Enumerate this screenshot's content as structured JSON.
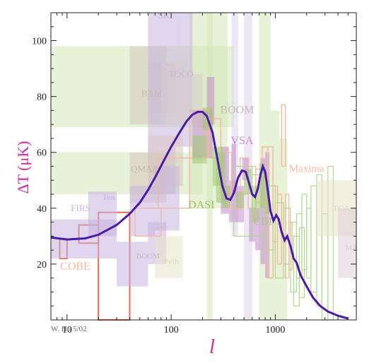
{
  "chart_data": {
    "type": "scatter",
    "title": "",
    "xlabel": "l",
    "ylabel": "ΔT (μK)",
    "x_scale": "log",
    "xlim": [
      7,
      6000
    ],
    "ylim": [
      0,
      110
    ],
    "x_ticks": [
      {
        "value": 10,
        "label": "10"
      },
      {
        "value": 100,
        "label": "100"
      },
      {
        "value": 1000,
        "label": "1000"
      }
    ],
    "y_ticks": [
      {
        "value": 20,
        "label": "20"
      },
      {
        "value": 40,
        "label": "40"
      },
      {
        "value": 60,
        "label": "60"
      },
      {
        "value": 80,
        "label": "80"
      },
      {
        "value": 100,
        "label": "100"
      }
    ],
    "grid": false,
    "credit": "W. Hu 5/02",
    "theory_curve": {
      "color": "#4a1aa8",
      "points": [
        [
          7,
          29.5
        ],
        [
          10,
          28.8
        ],
        [
          15,
          29.2
        ],
        [
          20,
          30.5
        ],
        [
          30,
          34
        ],
        [
          40,
          38
        ],
        [
          50,
          42
        ],
        [
          60,
          46.5
        ],
        [
          70,
          51
        ],
        [
          85,
          57
        ],
        [
          100,
          62
        ],
        [
          120,
          67
        ],
        [
          140,
          71
        ],
        [
          160,
          73.5
        ],
        [
          180,
          74.5
        ],
        [
          200,
          74.5
        ],
        [
          220,
          73
        ],
        [
          250,
          67
        ],
        [
          280,
          57
        ],
        [
          310,
          48
        ],
        [
          340,
          43.5
        ],
        [
          370,
          43
        ],
        [
          400,
          45.5
        ],
        [
          440,
          51
        ],
        [
          480,
          53.5
        ],
        [
          520,
          53
        ],
        [
          560,
          49
        ],
        [
          600,
          45
        ],
        [
          640,
          44
        ],
        [
          680,
          47
        ],
        [
          720,
          52
        ],
        [
          760,
          55
        ],
        [
          800,
          53
        ],
        [
          850,
          46
        ],
        [
          900,
          39
        ],
        [
          960,
          35.5
        ],
        [
          1020,
          37.5
        ],
        [
          1080,
          36
        ],
        [
          1150,
          31.5
        ],
        [
          1230,
          28.5
        ],
        [
          1300,
          30
        ],
        [
          1400,
          26.5
        ],
        [
          1500,
          22
        ],
        [
          1600,
          20.5
        ],
        [
          1750,
          16
        ],
        [
          2000,
          12
        ],
        [
          2300,
          8
        ],
        [
          2700,
          5
        ],
        [
          3200,
          3
        ],
        [
          4000,
          1.5
        ],
        [
          5000,
          0.5
        ]
      ]
    },
    "experiments": [
      {
        "name": "COBE",
        "color": "#ee6a50",
        "label_color": "#f5b8a4",
        "label_pos": [
          12,
          18
        ],
        "label_size": 16,
        "fill": false,
        "stroke_width": 2,
        "boxes": [
          [
            3.6,
            5.5,
            24,
            33
          ],
          [
            8.5,
            10,
            22,
            29
          ],
          [
            13,
            20,
            27.5,
            34
          ],
          [
            20,
            40,
            0,
            38.5
          ]
        ]
      },
      {
        "name": "FIRS",
        "color": "#c7b5e0",
        "label_color": "#c7b5e0",
        "label_pos": [
          13.5,
          39
        ],
        "label_size": 13,
        "fill": true,
        "stroke_width": 0,
        "boxes": [
          [
            3.2,
            30,
            22,
            36
          ]
        ]
      },
      {
        "name": "Ten",
        "color": "#c7b5e0",
        "label_color": "#c7b5e0",
        "label_pos": [
          25,
          43
        ],
        "label_size": 12,
        "fill": true,
        "stroke_width": 0,
        "boxes": [
          [
            16,
            30,
            30,
            46
          ]
        ]
      },
      {
        "name": "BAM",
        "color": "#d4c8c0",
        "label_color": "#c8b8b8",
        "label_pos": [
          65,
          80
        ],
        "label_size": 13,
        "fill": true,
        "stroke_width": 0,
        "boxes": [
          [
            40,
            90,
            70,
            98
          ],
          [
            60,
            110,
            74,
            92
          ]
        ]
      },
      {
        "name": "SK",
        "color": "#c7b5e0",
        "label_color": "#c7b5e0",
        "label_pos": [
          85,
          108
        ],
        "label_size": 13,
        "fill": true,
        "stroke_width": 0,
        "boxes": [
          [
            60,
            110,
            45,
            110
          ],
          [
            110,
            160,
            62,
            110
          ]
        ]
      },
      {
        "name": "TOCO",
        "color": "#d8ccd0",
        "label_color": "#c8b8c8",
        "label_pos": [
          125,
          87
        ],
        "label_size": 13,
        "fill": true,
        "stroke_width": 0,
        "boxes": [
          [
            80,
            140,
            70,
            92
          ],
          [
            120,
            200,
            75,
            88
          ]
        ]
      },
      {
        "name": "QMAP",
        "color": "#d8c8c0",
        "label_color": "#c8b8b0",
        "label_pos": [
          55,
          53
        ],
        "label_size": 13,
        "fill": true,
        "stroke_width": 0,
        "boxes": [
          [
            40,
            90,
            42,
            60
          ],
          [
            60,
            130,
            48,
            66
          ]
        ]
      },
      {
        "name": "BOOM",
        "color": "#c7b5e0",
        "label_color": "#c8b8b8",
        "label_pos": [
          430,
          74
        ],
        "label_size": 16,
        "fill": true,
        "stroke_width": 0,
        "boxes": [
          [
            40,
            70,
            30,
            48
          ],
          [
            70,
            120,
            32,
            55
          ],
          [
            60,
            90,
            20,
            35
          ]
        ]
      },
      {
        "name": "BOOM",
        "color": "#c7b5e0",
        "label_color": "#c8b8c8",
        "label_pos": [
          60,
          22
        ],
        "label_size": 11,
        "fill": true,
        "stroke_width": 0,
        "boxes": [
          [
            30,
            60,
            12,
            28
          ]
        ]
      },
      {
        "name": "Pyth",
        "color": "#e8e4c8",
        "label_color": "#e0d8c0",
        "label_pos": [
          100,
          20
        ],
        "label_size": 12,
        "fill": true,
        "stroke_width": 0,
        "boxes": [
          [
            70,
            130,
            15,
            30
          ]
        ]
      },
      {
        "name": "VSA",
        "color": "#c68ad0",
        "label_color": "#c68ad0",
        "label_pos": [
          480,
          63
        ],
        "label_size": 16,
        "fill": true,
        "stroke_width": 0,
        "boxes": [
          [
            160,
            250,
            58,
            75
          ],
          [
            220,
            260,
            70,
            87
          ],
          [
            300,
            360,
            38,
            62
          ],
          [
            360,
            420,
            35,
            50
          ],
          [
            420,
            500,
            35,
            48
          ],
          [
            560,
            640,
            28,
            40
          ],
          [
            640,
            720,
            25,
            40
          ],
          [
            720,
            800,
            20,
            58
          ],
          [
            800,
            880,
            15,
            60
          ],
          [
            380,
            420,
            45,
            63
          ],
          [
            480,
            560,
            50,
            58
          ]
        ]
      },
      {
        "name": "Maxima",
        "color": "#f7b8a0",
        "label_color": "#f5b8a4",
        "label_pos": [
          2000,
          53
        ],
        "label_size": 15,
        "fill": false,
        "stroke_width": 1.4,
        "boxes": [
          [
            45,
            80,
            30,
            40
          ],
          [
            75,
            150,
            40,
            58
          ],
          [
            150,
            230,
            58,
            75
          ],
          [
            220,
            300,
            58,
            72
          ],
          [
            300,
            380,
            45,
            60
          ],
          [
            380,
            460,
            40,
            55
          ],
          [
            460,
            550,
            45,
            58
          ],
          [
            550,
            650,
            40,
            55
          ],
          [
            650,
            750,
            42,
            54
          ],
          [
            750,
            850,
            42,
            62
          ],
          [
            850,
            950,
            15,
            62
          ],
          [
            950,
            1050,
            28,
            48
          ],
          [
            1050,
            1150,
            20,
            45
          ],
          [
            1150,
            1250,
            55,
            77
          ],
          [
            1250,
            1350,
            15,
            45
          ],
          [
            1350,
            1450,
            18,
            35
          ]
        ]
      },
      {
        "name": "DASI",
        "color": "#a0c870",
        "label_color": "#9cc05c",
        "label_pos": [
          195,
          40
        ],
        "label_size": 16,
        "fill": true,
        "stroke_width": 0,
        "boxes": [
          [
            200,
            250,
            68,
            76
          ],
          [
            250,
            310,
            48,
            62
          ],
          [
            310,
            370,
            40,
            48
          ],
          [
            420,
            500,
            40,
            46
          ],
          [
            500,
            590,
            45,
            54
          ],
          [
            590,
            700,
            35,
            48
          ],
          [
            700,
            790,
            40,
            56
          ],
          [
            790,
            880,
            38,
            50
          ],
          [
            160,
            220,
            56,
            66
          ],
          [
            270,
            330,
            42,
            60
          ]
        ]
      },
      {
        "name": "CBI",
        "color": "#b0d890",
        "label_color": "#b8b8a8",
        "label_pos": [
          760,
          34
        ],
        "label_size": 16,
        "fill": false,
        "stroke_width": 1.2,
        "boxes": [
          [
            400,
            600,
            30,
            55
          ],
          [
            600,
            800,
            30,
            52
          ],
          [
            800,
            1000,
            25,
            48
          ],
          [
            1000,
            1200,
            15,
            42
          ],
          [
            1200,
            1400,
            20,
            40
          ],
          [
            1400,
            1600,
            10,
            35
          ],
          [
            1600,
            1800,
            15,
            38
          ],
          [
            1800,
            2000,
            18,
            45
          ],
          [
            2000,
            2200,
            15,
            40
          ],
          [
            2200,
            2500,
            10,
            48
          ],
          [
            2500,
            2800,
            5,
            52
          ],
          [
            2800,
            3200,
            0,
            38
          ],
          [
            3200,
            3600,
            0,
            55
          ],
          [
            1500,
            1700,
            5,
            30
          ],
          [
            1700,
            1900,
            8,
            33
          ]
        ]
      },
      {
        "name": "TCA",
        "color": "#e8e4c8",
        "label_color": "#d8d4c8",
        "label_pos": [
          4300,
          39
        ],
        "label_size": 12,
        "fill": true,
        "stroke_width": 0,
        "boxes": [
          [
            2500,
            6000,
            30,
            50
          ]
        ]
      },
      {
        "name": "MA",
        "color": "#e0d0d8",
        "label_color": "#d8c8d0",
        "label_pos": [
          5400,
          25
        ],
        "label_size": 11,
        "fill": true,
        "stroke_width": 0,
        "boxes": [
          [
            4000,
            6000,
            15,
            40
          ]
        ]
      }
    ],
    "background_bands": [
      {
        "color": "#d4e8b8",
        "boxes": [
          [
            3,
            400,
            69,
            98
          ],
          [
            3,
            200,
            45,
            60
          ],
          [
            150,
            350,
            40,
            110
          ],
          [
            220,
            250,
            0,
            110
          ],
          [
            700,
            900,
            0,
            110
          ],
          [
            900,
            1100,
            0,
            75
          ],
          [
            1100,
            1300,
            0,
            65
          ]
        ]
      },
      {
        "color": "#ddd2ec",
        "boxes": [
          [
            500,
            600,
            0,
            110
          ],
          [
            380,
            440,
            30,
            110
          ]
        ]
      }
    ]
  }
}
